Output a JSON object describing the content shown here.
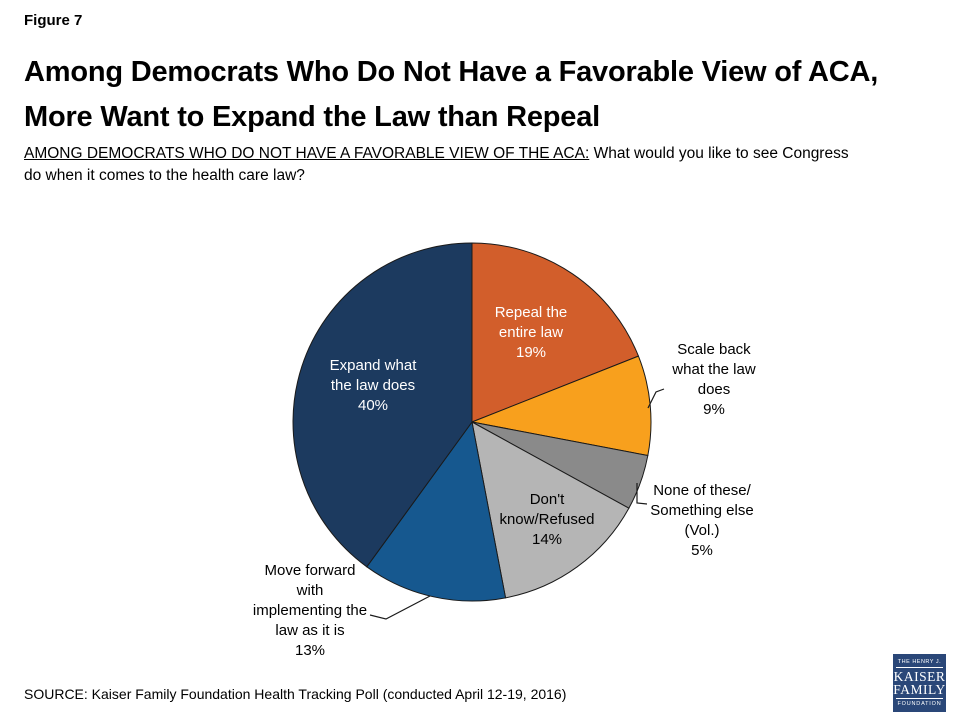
{
  "header": {
    "figure_label": "Figure 7",
    "title_line1": "Among Democrats Who Do Not Have a Favorable View of ACA,",
    "title_line2": "More Want to Expand the Law than Repeal",
    "subtitle_underlined": "AMONG DEMOCRATS WHO DO NOT HAVE A FAVORABLE VIEW OF THE ACA:",
    "subtitle_rest_line1": "What would you like to see Congress",
    "subtitle_rest_line2": "do when it comes to the health care law?"
  },
  "chart_data": {
    "type": "pie",
    "title": "AMONG DEMOCRATS WHO DO NOT HAVE A FAVORABLE VIEW OF THE ACA: What would you like to see Congress do when it comes to the health care law?",
    "start_angle_deg": -90,
    "direction": "clockwise",
    "legend_position": "labels-on-and-around-slices",
    "segments": [
      {
        "id": "repeal",
        "label": "Repeal the entire law",
        "value": 19,
        "display": "19%",
        "color": "#D25E2B",
        "text_color": "#FFFFFF",
        "lines": [
          "Repeal the",
          "entire law",
          "19%"
        ]
      },
      {
        "id": "scale-back",
        "label": "Scale back what the law does",
        "value": 9,
        "display": "9%",
        "color": "#F8A01D",
        "text_color": "#000000",
        "lines": [
          "Scale back",
          "what the law",
          "does",
          "9%"
        ]
      },
      {
        "id": "none-of-these",
        "label": "None of these/Something else (Vol.)",
        "value": 5,
        "display": "5%",
        "color": "#8A8A8A",
        "text_color": "#000000",
        "lines": [
          "None of these/",
          "Something else",
          "(Vol.)",
          "5%"
        ]
      },
      {
        "id": "dont-know",
        "label": "Don't know/Refused",
        "value": 14,
        "display": "14%",
        "color": "#B5B5B5",
        "text_color": "#000000",
        "lines": [
          "Don't",
          "know/Refused",
          "14%"
        ]
      },
      {
        "id": "move-forward",
        "label": "Move forward with implementing the law as it is",
        "value": 13,
        "display": "13%",
        "color": "#16588F",
        "text_color": "#000000",
        "lines": [
          "Move forward",
          "with",
          "implementing the",
          "law as it is",
          "13%"
        ]
      },
      {
        "id": "expand",
        "label": "Expand what the law does",
        "value": 40,
        "display": "40%",
        "color": "#1C3A5F",
        "text_color": "#FFFFFF",
        "lines": [
          "Expand what",
          "the law does",
          "40%"
        ]
      }
    ]
  },
  "footer": {
    "source": "SOURCE: Kaiser Family Foundation Health Tracking Poll (conducted April 12-19, 2016)",
    "logo": {
      "top": "THE HENRY J.",
      "line1": "KAISER",
      "line2": "FAMILY",
      "bottom": "FOUNDATION"
    }
  }
}
